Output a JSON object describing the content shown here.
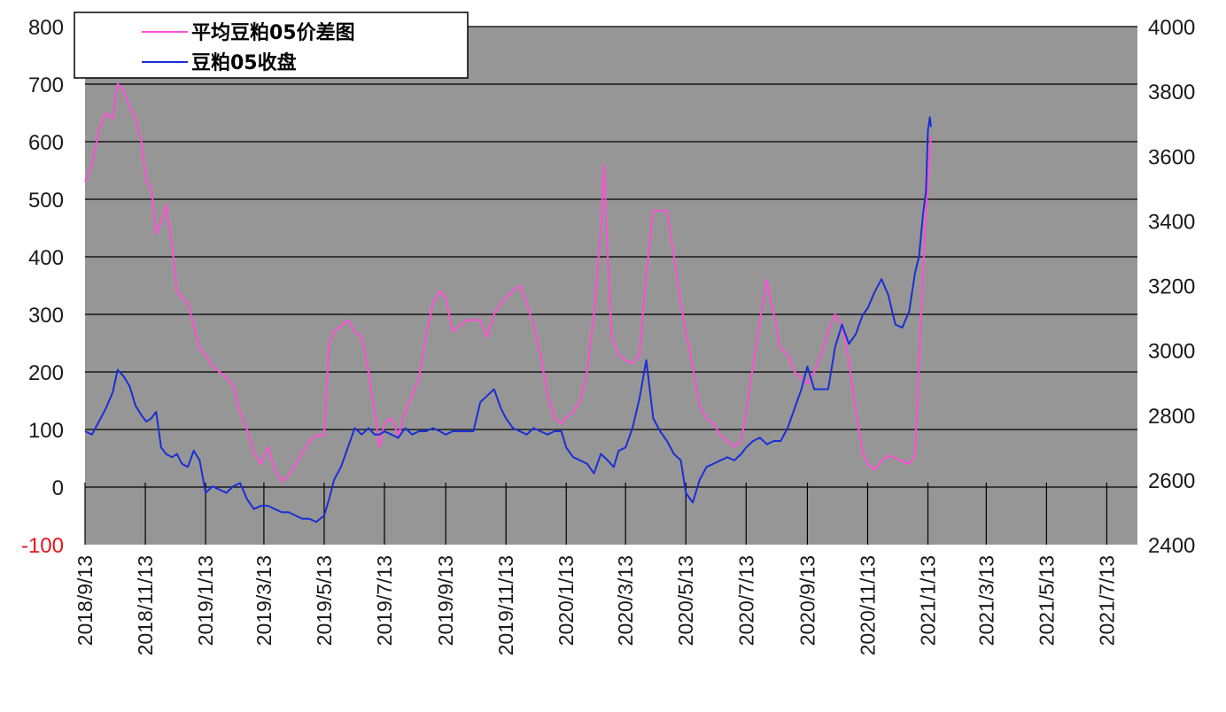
{
  "chart_data": {
    "type": "line",
    "title": "",
    "xlabel": "",
    "ylabel": "",
    "x_tick_labels": [
      "2018/9/13",
      "2018/11/13",
      "2019/1/13",
      "2019/3/13",
      "2019/5/13",
      "2019/7/13",
      "2019/9/13",
      "2019/11/13",
      "2020/1/13",
      "2020/3/13",
      "2020/5/13",
      "2020/7/13",
      "2020/9/13",
      "2020/11/13",
      "2021/1/13",
      "2021/3/13",
      "2021/5/13",
      "2021/7/13"
    ],
    "x_range": [
      "2018/9/13",
      "2021/8/13"
    ],
    "y_left_ticks": [
      "-100",
      "0",
      "100",
      "200",
      "300",
      "400",
      "500",
      "600",
      "700",
      "800"
    ],
    "y_left_ylim": [
      -100,
      800
    ],
    "y_left_negative_color": "#e8141c",
    "y_right_ticks": [
      "2400",
      "2600",
      "2800",
      "3000",
      "3200",
      "3400",
      "3600",
      "3800",
      "4000"
    ],
    "y_right_ylim": [
      2400,
      4000
    ],
    "plot_background": "#969696",
    "grid": "horizontal",
    "legend_position": "top-left",
    "series": [
      {
        "name": "平均豆粕05价差图",
        "axis": "left",
        "color": "#ff4fd6",
        "points": [
          [
            "2018/9/13",
            530
          ],
          [
            "2018/9/20",
            560
          ],
          [
            "2018/9/27",
            620
          ],
          [
            "2018/10/4",
            650
          ],
          [
            "2018/10/11",
            640
          ],
          [
            "2018/10/16",
            700
          ],
          [
            "2018/10/22",
            690
          ],
          [
            "2018/10/28",
            660
          ],
          [
            "2018/11/3",
            640
          ],
          [
            "2018/11/9",
            600
          ],
          [
            "2018/11/14",
            530
          ],
          [
            "2018/11/19",
            520
          ],
          [
            "2018/11/24",
            440
          ],
          [
            "2018/11/29",
            460
          ],
          [
            "2018/12/4",
            490
          ],
          [
            "2018/12/10",
            420
          ],
          [
            "2018/12/15",
            340
          ],
          [
            "2018/12/20",
            330
          ],
          [
            "2018/12/26",
            320
          ],
          [
            "2019/1/1",
            280
          ],
          [
            "2019/1/7",
            240
          ],
          [
            "2019/1/13",
            230
          ],
          [
            "2019/1/20",
            210
          ],
          [
            "2019/1/27",
            200
          ],
          [
            "2019/2/3",
            190
          ],
          [
            "2019/2/10",
            175
          ],
          [
            "2019/2/17",
            130
          ],
          [
            "2019/2/24",
            100
          ],
          [
            "2019/3/3",
            60
          ],
          [
            "2019/3/10",
            40
          ],
          [
            "2019/3/17",
            70
          ],
          [
            "2019/3/24",
            30
          ],
          [
            "2019/3/31",
            10
          ],
          [
            "2019/4/7",
            20
          ],
          [
            "2019/4/14",
            40
          ],
          [
            "2019/4/21",
            60
          ],
          [
            "2019/4/28",
            80
          ],
          [
            "2019/5/5",
            90
          ],
          [
            "2019/5/13",
            90
          ],
          [
            "2019/5/18",
            250
          ],
          [
            "2019/5/23",
            270
          ],
          [
            "2019/5/30",
            280
          ],
          [
            "2019/6/6",
            290
          ],
          [
            "2019/6/13",
            270
          ],
          [
            "2019/6/20",
            260
          ],
          [
            "2019/6/27",
            200
          ],
          [
            "2019/7/3",
            130
          ],
          [
            "2019/7/8",
            70
          ],
          [
            "2019/7/13",
            110
          ],
          [
            "2019/7/20",
            120
          ],
          [
            "2019/7/27",
            90
          ],
          [
            "2019/8/3",
            130
          ],
          [
            "2019/8/10",
            160
          ],
          [
            "2019/8/17",
            190
          ],
          [
            "2019/8/24",
            260
          ],
          [
            "2019/8/31",
            320
          ],
          [
            "2019/9/7",
            340
          ],
          [
            "2019/9/13",
            330
          ],
          [
            "2019/9/20",
            270
          ],
          [
            "2019/9/27",
            280
          ],
          [
            "2019/10/4",
            290
          ],
          [
            "2019/10/11",
            290
          ],
          [
            "2019/10/18",
            290
          ],
          [
            "2019/10/25",
            260
          ],
          [
            "2019/11/1",
            300
          ],
          [
            "2019/11/8",
            320
          ],
          [
            "2019/11/13",
            330
          ],
          [
            "2019/11/20",
            340
          ],
          [
            "2019/11/27",
            350
          ],
          [
            "2019/12/4",
            320
          ],
          [
            "2019/12/11",
            280
          ],
          [
            "2019/12/18",
            230
          ],
          [
            "2019/12/25",
            160
          ],
          [
            "2020/1/1",
            120
          ],
          [
            "2020/1/8",
            110
          ],
          [
            "2020/1/13",
            120
          ],
          [
            "2020/1/20",
            130
          ],
          [
            "2020/1/27",
            150
          ],
          [
            "2020/2/3",
            200
          ],
          [
            "2020/2/10",
            300
          ],
          [
            "2020/2/17",
            450
          ],
          [
            "2020/2/20",
            560
          ],
          [
            "2020/2/24",
            400
          ],
          [
            "2020/2/28",
            260
          ],
          [
            "2020/3/6",
            230
          ],
          [
            "2020/3/13",
            220
          ],
          [
            "2020/3/20",
            215
          ],
          [
            "2020/3/27",
            230
          ],
          [
            "2020/4/3",
            370
          ],
          [
            "2020/4/10",
            480
          ],
          [
            "2020/4/17",
            480
          ],
          [
            "2020/4/24",
            480
          ],
          [
            "2020/5/1",
            400
          ],
          [
            "2020/5/8",
            320
          ],
          [
            "2020/5/13",
            270
          ],
          [
            "2020/5/20",
            210
          ],
          [
            "2020/5/27",
            140
          ],
          [
            "2020/6/3",
            120
          ],
          [
            "2020/6/10",
            110
          ],
          [
            "2020/6/17",
            90
          ],
          [
            "2020/6/24",
            80
          ],
          [
            "2020/7/1",
            70
          ],
          [
            "2020/7/8",
            80
          ],
          [
            "2020/7/13",
            130
          ],
          [
            "2020/7/20",
            210
          ],
          [
            "2020/7/27",
            290
          ],
          [
            "2020/8/3",
            360
          ],
          [
            "2020/8/10",
            300
          ],
          [
            "2020/8/17",
            240
          ],
          [
            "2020/8/24",
            230
          ],
          [
            "2020/8/31",
            200
          ],
          [
            "2020/9/7",
            190
          ],
          [
            "2020/9/13",
            180
          ],
          [
            "2020/9/20",
            200
          ],
          [
            "2020/9/27",
            230
          ],
          [
            "2020/10/4",
            270
          ],
          [
            "2020/10/11",
            300
          ],
          [
            "2020/10/18",
            280
          ],
          [
            "2020/10/25",
            220
          ],
          [
            "2020/11/1",
            130
          ],
          [
            "2020/11/8",
            60
          ],
          [
            "2020/11/13",
            40
          ],
          [
            "2020/11/20",
            30
          ],
          [
            "2020/11/27",
            45
          ],
          [
            "2020/12/4",
            55
          ],
          [
            "2020/12/11",
            50
          ],
          [
            "2020/12/18",
            45
          ],
          [
            "2020/12/25",
            40
          ],
          [
            "2020/12/31",
            55
          ],
          [
            "2021/1/6",
            300
          ],
          [
            "2021/1/11",
            480
          ],
          [
            "2021/1/15",
            580
          ],
          [
            "2021/1/16",
            610
          ]
        ]
      },
      {
        "name": "豆粕05收盘",
        "axis": "right",
        "color": "#1a2fd6",
        "points": [
          [
            "2018/9/13",
            2750
          ],
          [
            "2018/9/20",
            2740
          ],
          [
            "2018/9/27",
            2780
          ],
          [
            "2018/10/4",
            2820
          ],
          [
            "2018/10/11",
            2870
          ],
          [
            "2018/10/16",
            2940
          ],
          [
            "2018/10/22",
            2920
          ],
          [
            "2018/10/28",
            2890
          ],
          [
            "2018/11/3",
            2830
          ],
          [
            "2018/11/9",
            2800
          ],
          [
            "2018/11/14",
            2780
          ],
          [
            "2018/11/19",
            2790
          ],
          [
            "2018/11/24",
            2810
          ],
          [
            "2018/11/29",
            2700
          ],
          [
            "2018/12/4",
            2680
          ],
          [
            "2018/12/10",
            2670
          ],
          [
            "2018/12/15",
            2680
          ],
          [
            "2018/12/20",
            2650
          ],
          [
            "2018/12/26",
            2640
          ],
          [
            "2019/1/1",
            2690
          ],
          [
            "2019/1/7",
            2660
          ],
          [
            "2019/1/13",
            2560
          ],
          [
            "2019/1/20",
            2580
          ],
          [
            "2019/1/27",
            2570
          ],
          [
            "2019/2/3",
            2560
          ],
          [
            "2019/2/10",
            2580
          ],
          [
            "2019/2/17",
            2590
          ],
          [
            "2019/2/24",
            2540
          ],
          [
            "2019/3/3",
            2510
          ],
          [
            "2019/3/10",
            2520
          ],
          [
            "2019/3/17",
            2520
          ],
          [
            "2019/3/24",
            2510
          ],
          [
            "2019/3/31",
            2500
          ],
          [
            "2019/4/7",
            2500
          ],
          [
            "2019/4/14",
            2490
          ],
          [
            "2019/4/21",
            2480
          ],
          [
            "2019/4/28",
            2480
          ],
          [
            "2019/5/5",
            2470
          ],
          [
            "2019/5/13",
            2490
          ],
          [
            "2019/5/18",
            2540
          ],
          [
            "2019/5/23",
            2600
          ],
          [
            "2019/5/30",
            2640
          ],
          [
            "2019/6/6",
            2700
          ],
          [
            "2019/6/13",
            2760
          ],
          [
            "2019/6/20",
            2740
          ],
          [
            "2019/6/27",
            2760
          ],
          [
            "2019/7/3",
            2740
          ],
          [
            "2019/7/8",
            2740
          ],
          [
            "2019/7/13",
            2750
          ],
          [
            "2019/7/20",
            2740
          ],
          [
            "2019/7/27",
            2730
          ],
          [
            "2019/8/3",
            2760
          ],
          [
            "2019/8/10",
            2740
          ],
          [
            "2019/8/17",
            2750
          ],
          [
            "2019/8/24",
            2750
          ],
          [
            "2019/8/31",
            2760
          ],
          [
            "2019/9/7",
            2750
          ],
          [
            "2019/9/13",
            2740
          ],
          [
            "2019/9/20",
            2750
          ],
          [
            "2019/9/27",
            2750
          ],
          [
            "2019/10/4",
            2750
          ],
          [
            "2019/10/11",
            2750
          ],
          [
            "2019/10/18",
            2840
          ],
          [
            "2019/10/25",
            2860
          ],
          [
            "2019/11/1",
            2880
          ],
          [
            "2019/11/8",
            2820
          ],
          [
            "2019/11/13",
            2790
          ],
          [
            "2019/11/20",
            2760
          ],
          [
            "2019/11/27",
            2750
          ],
          [
            "2019/12/4",
            2740
          ],
          [
            "2019/12/11",
            2760
          ],
          [
            "2019/12/18",
            2750
          ],
          [
            "2019/12/25",
            2740
          ],
          [
            "2020/1/1",
            2750
          ],
          [
            "2020/1/8",
            2750
          ],
          [
            "2020/1/13",
            2700
          ],
          [
            "2020/1/20",
            2670
          ],
          [
            "2020/1/27",
            2660
          ],
          [
            "2020/2/3",
            2650
          ],
          [
            "2020/2/10",
            2620
          ],
          [
            "2020/2/17",
            2680
          ],
          [
            "2020/2/24",
            2660
          ],
          [
            "2020/3/1",
            2640
          ],
          [
            "2020/3/6",
            2690
          ],
          [
            "2020/3/13",
            2700
          ],
          [
            "2020/3/20",
            2760
          ],
          [
            "2020/3/27",
            2850
          ],
          [
            "2020/4/3",
            2970
          ],
          [
            "2020/4/10",
            2790
          ],
          [
            "2020/4/17",
            2750
          ],
          [
            "2020/4/24",
            2720
          ],
          [
            "2020/5/1",
            2680
          ],
          [
            "2020/5/8",
            2660
          ],
          [
            "2020/5/13",
            2560
          ],
          [
            "2020/5/20",
            2530
          ],
          [
            "2020/5/27",
            2600
          ],
          [
            "2020/6/3",
            2640
          ],
          [
            "2020/6/10",
            2650
          ],
          [
            "2020/6/17",
            2660
          ],
          [
            "2020/6/24",
            2670
          ],
          [
            "2020/7/1",
            2660
          ],
          [
            "2020/7/8",
            2680
          ],
          [
            "2020/7/13",
            2700
          ],
          [
            "2020/7/20",
            2720
          ],
          [
            "2020/7/27",
            2730
          ],
          [
            "2020/8/3",
            2710
          ],
          [
            "2020/8/10",
            2720
          ],
          [
            "2020/8/17",
            2720
          ],
          [
            "2020/8/24",
            2760
          ],
          [
            "2020/8/31",
            2820
          ],
          [
            "2020/9/7",
            2880
          ],
          [
            "2020/9/13",
            2950
          ],
          [
            "2020/9/20",
            2880
          ],
          [
            "2020/9/27",
            2880
          ],
          [
            "2020/10/4",
            2880
          ],
          [
            "2020/10/11",
            3010
          ],
          [
            "2020/10/18",
            3080
          ],
          [
            "2020/10/25",
            3020
          ],
          [
            "2020/11/1",
            3050
          ],
          [
            "2020/11/8",
            3110
          ],
          [
            "2020/11/13",
            3130
          ],
          [
            "2020/11/20",
            3180
          ],
          [
            "2020/11/27",
            3220
          ],
          [
            "2020/12/4",
            3170
          ],
          [
            "2020/12/11",
            3080
          ],
          [
            "2020/12/18",
            3070
          ],
          [
            "2020/12/25",
            3120
          ],
          [
            "2020/12/31",
            3240
          ],
          [
            "2021/1/4",
            3290
          ],
          [
            "2021/1/8",
            3420
          ],
          [
            "2021/1/11",
            3490
          ],
          [
            "2021/1/13",
            3680
          ],
          [
            "2021/1/15",
            3720
          ],
          [
            "2021/1/16",
            3690
          ]
        ]
      }
    ]
  }
}
